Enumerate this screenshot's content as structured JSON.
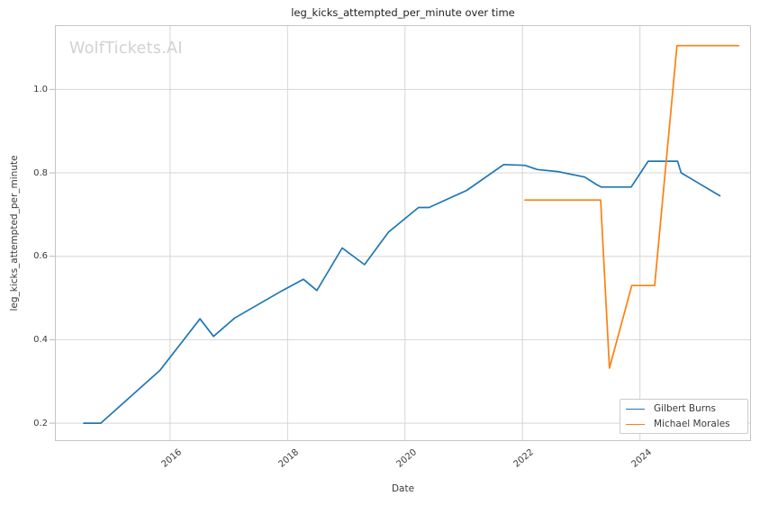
{
  "title": "leg_kicks_attempted_per_minute over time",
  "watermark": "WolfTickets.AI",
  "axes": {
    "x_label": "Date",
    "y_label": "leg_kicks_attempted_per_minute",
    "x_ticks": [
      2016,
      2018,
      2020,
      2022,
      2024
    ],
    "y_ticks": [
      0.2,
      0.4,
      0.6,
      0.8,
      1.0
    ]
  },
  "legend": {
    "items": [
      {
        "label": "Gilbert Burns",
        "color": "#1f77b4"
      },
      {
        "label": "Michael Morales",
        "color": "#ff7f0e"
      }
    ]
  },
  "style": {
    "grid_color": "#d6d6d6",
    "spine_color": "#c6c6c6",
    "tick_mark_color": "#b8b8b8",
    "background": "#ffffff"
  },
  "chart_data": {
    "type": "line",
    "title": "leg_kicks_attempted_per_minute over time",
    "xlabel": "Date",
    "ylabel": "leg_kicks_attempted_per_minute",
    "x_unit": "decimal_year",
    "xlim": [
      2014.04,
      2025.89
    ],
    "ylim": [
      0.157,
      1.154
    ],
    "grid": true,
    "legend_position": "lower right",
    "series": [
      {
        "name": "Gilbert Burns",
        "color": "#1f77b4",
        "points": [
          [
            2014.53,
            0.2
          ],
          [
            2014.82,
            0.2
          ],
          [
            2015.83,
            0.327
          ],
          [
            2016.51,
            0.45
          ],
          [
            2016.74,
            0.408
          ],
          [
            2017.1,
            0.452
          ],
          [
            2017.9,
            0.517
          ],
          [
            2018.27,
            0.545
          ],
          [
            2018.5,
            0.518
          ],
          [
            2018.93,
            0.62
          ],
          [
            2019.31,
            0.58
          ],
          [
            2019.72,
            0.658
          ],
          [
            2020.23,
            0.717
          ],
          [
            2020.41,
            0.717
          ],
          [
            2021.05,
            0.758
          ],
          [
            2021.68,
            0.82
          ],
          [
            2022.04,
            0.818
          ],
          [
            2022.25,
            0.808
          ],
          [
            2022.6,
            0.803
          ],
          [
            2023.06,
            0.79
          ],
          [
            2023.26,
            0.772
          ],
          [
            2023.34,
            0.766
          ],
          [
            2023.85,
            0.766
          ],
          [
            2024.14,
            0.828
          ],
          [
            2024.64,
            0.828
          ],
          [
            2024.7,
            0.8
          ],
          [
            2025.36,
            0.745
          ]
        ]
      },
      {
        "name": "Michael Morales",
        "color": "#ff7f0e",
        "points": [
          [
            2022.04,
            0.735
          ],
          [
            2023.33,
            0.735
          ],
          [
            2023.48,
            0.332
          ],
          [
            2023.86,
            0.53
          ],
          [
            2024.25,
            0.53
          ],
          [
            2024.63,
            1.105
          ],
          [
            2025.68,
            1.105
          ]
        ]
      }
    ]
  }
}
